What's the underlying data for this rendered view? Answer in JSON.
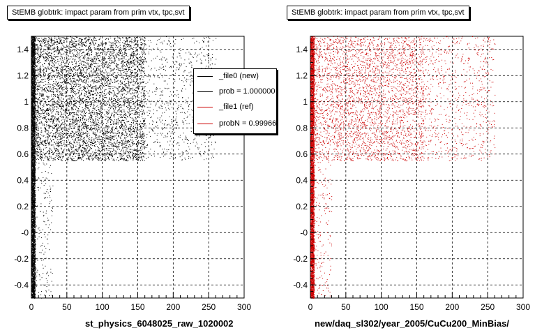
{
  "canvas_title_left": "StEMB globtrk: impact param from prim vtx, tpc,svt",
  "canvas_title_right": "StEMB globtrk: impact param from prim vtx, tpc,svt",
  "footer_text": "",
  "legend": {
    "entries": [
      {
        "label": "_file0 (new)",
        "color": "#000000"
      },
      {
        "label": "prob = 1.000000",
        "color": "#000000"
      },
      {
        "label": "_file1 (ref)",
        "color": "#cc0000"
      },
      {
        "label": "probN = 0.99966",
        "color": "#cc0000"
      }
    ]
  },
  "chart_data": [
    {
      "type": "scatter",
      "title": "StEMB globtrk: impact param from prim vtx, tpc,svt",
      "xlabel": "st_physics_6048025_raw_1020002",
      "ylabel": "",
      "xlim": [
        0,
        300
      ],
      "ylim": [
        -0.5,
        1.5
      ],
      "xticks": [
        "0",
        "50",
        "100",
        "150",
        "200",
        "250",
        "300"
      ],
      "yticks": [
        "-0.4",
        "-0.2",
        "-0",
        "0.2",
        "0.4",
        "0.6",
        "0.8",
        "1",
        "1.2",
        "1.4"
      ],
      "grid": true,
      "legend_position": "top-right",
      "series": [
        {
          "name": "_file0 (new)",
          "color": "#000000",
          "regions": [
            {
              "x": [
                0,
                5
              ],
              "y": [
                -0.5,
                1.5
              ],
              "density": "very high"
            },
            {
              "x": [
                5,
                30
              ],
              "y": [
                -0.5,
                0.55
              ],
              "density": "sparse"
            },
            {
              "x": [
                5,
                160
              ],
              "y": [
                0.55,
                1.5
              ],
              "density": "high"
            },
            {
              "x": [
                160,
                260
              ],
              "y": [
                0.55,
                1.5
              ],
              "density": "low"
            }
          ]
        }
      ]
    },
    {
      "type": "scatter",
      "title": "StEMB globtrk: impact param from prim vtx, tpc,svt",
      "xlabel": "new/daq_sl302/year_2005/CuCu200_MinBias/",
      "ylabel": "",
      "xlim": [
        0,
        300
      ],
      "ylim": [
        -0.5,
        1.5
      ],
      "xticks": [
        "0",
        "50",
        "100",
        "150",
        "200",
        "250",
        "300"
      ],
      "yticks": [
        "-0.4",
        "-0.2",
        "-0",
        "0.2",
        "0.4",
        "0.6",
        "0.8",
        "1",
        "1.2",
        "1.4"
      ],
      "grid": true,
      "series": [
        {
          "name": "_file1 (ref)",
          "color": "#cc0000",
          "regions": [
            {
              "x": [
                0,
                5
              ],
              "y": [
                -0.5,
                1.5
              ],
              "density": "very high"
            },
            {
              "x": [
                5,
                30
              ],
              "y": [
                -0.5,
                0.55
              ],
              "density": "sparse"
            },
            {
              "x": [
                5,
                160
              ],
              "y": [
                0.55,
                1.5
              ],
              "density": "medium"
            },
            {
              "x": [
                160,
                260
              ],
              "y": [
                0.55,
                1.5
              ],
              "density": "low"
            }
          ]
        }
      ]
    }
  ]
}
